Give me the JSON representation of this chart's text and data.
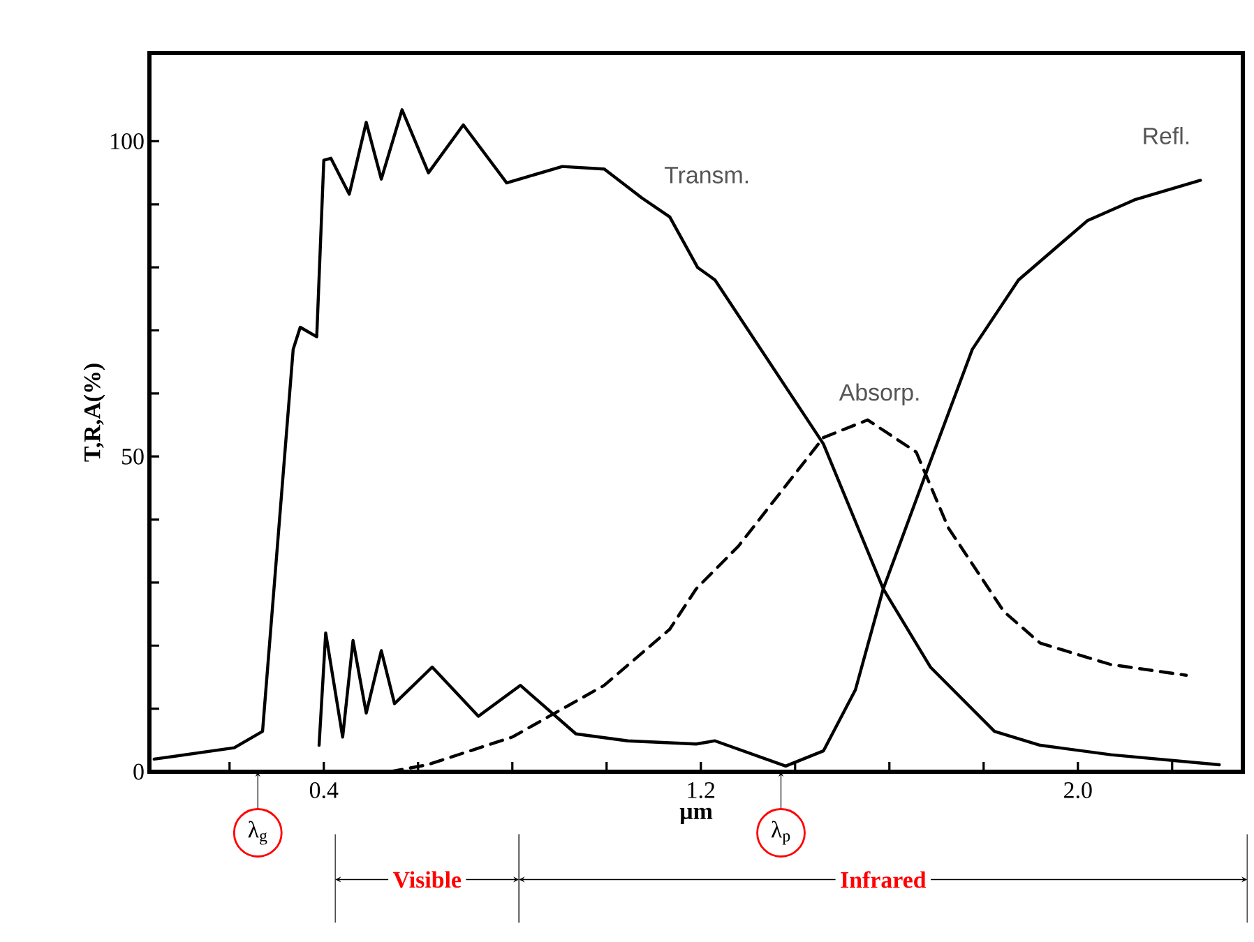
{
  "chart_data": {
    "type": "line",
    "xlabel": "µm",
    "ylabel": "T,R,A(%)",
    "xlim": [
      0.03,
      2.35
    ],
    "ylim": [
      0,
      114
    ],
    "xticks": [
      {
        "value": 0.2,
        "label": null
      },
      {
        "value": 0.4,
        "label": "0.4"
      },
      {
        "value": 0.6,
        "label": null
      },
      {
        "value": 0.8,
        "label": null
      },
      {
        "value": 1.0,
        "label": null
      },
      {
        "value": 1.2,
        "label": "1.2"
      },
      {
        "value": 1.4,
        "label": null
      },
      {
        "value": 1.6,
        "label": null
      },
      {
        "value": 1.8,
        "label": null
      },
      {
        "value": 2.0,
        "label": "2.0"
      },
      {
        "value": 2.2,
        "label": null
      }
    ],
    "yticks": [
      0,
      {
        "value": 10,
        "label": null
      },
      {
        "value": 20,
        "label": null
      },
      {
        "value": 30,
        "label": null
      },
      {
        "value": 40,
        "label": null
      },
      50,
      {
        "value": 60,
        "label": null
      },
      {
        "value": 70,
        "label": null
      },
      {
        "value": 80,
        "label": null
      },
      {
        "value": 90,
        "label": null
      },
      100
    ],
    "marker": "none",
    "legend": false,
    "series": [
      {
        "name": "Transm.",
        "color": "#000000",
        "line_style": "solid",
        "x": [
          0.04,
          0.21,
          0.27,
          0.335,
          0.35,
          0.385,
          0.4,
          0.415,
          0.454,
          0.49,
          0.522,
          0.566,
          0.622,
          0.696,
          0.788,
          0.906,
          0.995,
          1.075,
          1.134,
          1.193,
          1.23,
          1.46,
          1.587,
          1.687,
          1.823,
          1.92,
          2.07,
          2.3
        ],
        "values": [
          2,
          3.8,
          6.4,
          67,
          70.5,
          69,
          97,
          97.3,
          91.6,
          103,
          94,
          105,
          95,
          102.6,
          93.4,
          96,
          95.6,
          91,
          88,
          80,
          78,
          52,
          29,
          16.6,
          6.4,
          4.2,
          2.7,
          1.1
        ]
      },
      {
        "name": "Refl.",
        "color": "#000000",
        "line_style": "solid",
        "x": [
          0.39,
          0.404,
          0.44,
          0.462,
          0.49,
          0.522,
          0.55,
          0.63,
          0.728,
          0.817,
          0.935,
          1.045,
          1.19,
          1.23,
          1.38,
          1.46,
          1.528,
          1.587,
          1.676,
          1.776,
          1.874,
          2.02,
          2.12,
          2.26
        ],
        "values": [
          4.2,
          22,
          5.5,
          20.8,
          9.3,
          19.2,
          10.8,
          16.6,
          8.8,
          13.7,
          6,
          4.9,
          4.4,
          4.9,
          0.9,
          3.3,
          13,
          29,
          47,
          67,
          78,
          87.4,
          90.7,
          93.8
        ]
      },
      {
        "name": "Absorp.",
        "color": "#000000",
        "line_style": "dashed",
        "x": [
          0.54,
          0.62,
          0.8,
          0.995,
          1.134,
          1.19,
          1.28,
          1.46,
          1.554,
          1.657,
          1.725,
          1.843,
          1.92,
          2.07,
          2.23
        ],
        "values": [
          0,
          1.1,
          5.5,
          13.7,
          22.6,
          29,
          35.8,
          53,
          55.8,
          50.7,
          38.7,
          25.4,
          20.4,
          17,
          15.3
        ]
      }
    ],
    "annotations": [
      {
        "text": "λ$_{g}$",
        "x": 0.26,
        "y": 0
      },
      {
        "text": "λ$_{p}$",
        "x": 1.37,
        "y": 0
      },
      "Visible",
      "Infrared"
    ]
  }
}
